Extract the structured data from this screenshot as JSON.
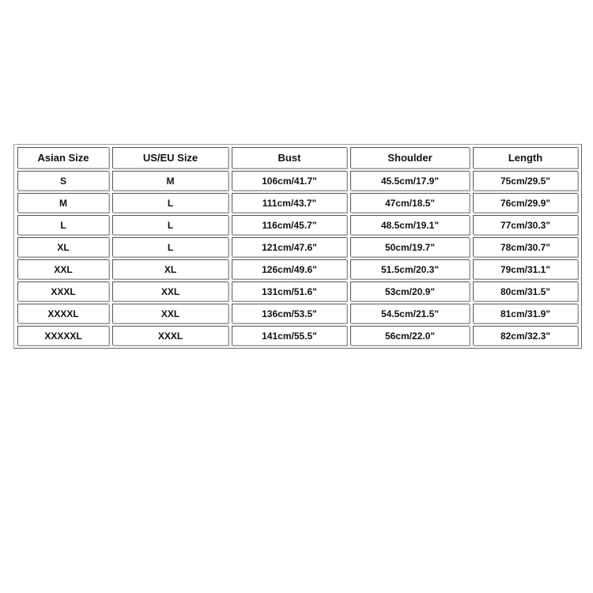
{
  "table": {
    "headers": [
      "Asian Size",
      "US/EU Size",
      "Bust",
      "Shoulder",
      "Length"
    ],
    "rows": [
      [
        "S",
        "M",
        "106cm/41.7\"",
        "45.5cm/17.9\"",
        "75cm/29.5\""
      ],
      [
        "M",
        "L",
        "111cm/43.7\"",
        "47cm/18.5\"",
        "76cm/29.9\""
      ],
      [
        "L",
        "L",
        "116cm/45.7\"",
        "48.5cm/19.1\"",
        "77cm/30.3\""
      ],
      [
        "XL",
        "L",
        "121cm/47.6\"",
        "50cm/19.7\"",
        "78cm/30.7\""
      ],
      [
        "XXL",
        "XL",
        "126cm/49.6\"",
        "51.5cm/20.3\"",
        "79cm/31.1\""
      ],
      [
        "XXXL",
        "XXL",
        "131cm/51.6\"",
        "53cm/20.9\"",
        "80cm/31.5\""
      ],
      [
        "XXXXL",
        "XXL",
        "136cm/53.5\"",
        "54.5cm/21.5\"",
        "81cm/31.9\""
      ],
      [
        "XXXXXL",
        "XXXL",
        "141cm/55.5\"",
        "56cm/22.0\"",
        "82cm/32.3\""
      ]
    ]
  }
}
